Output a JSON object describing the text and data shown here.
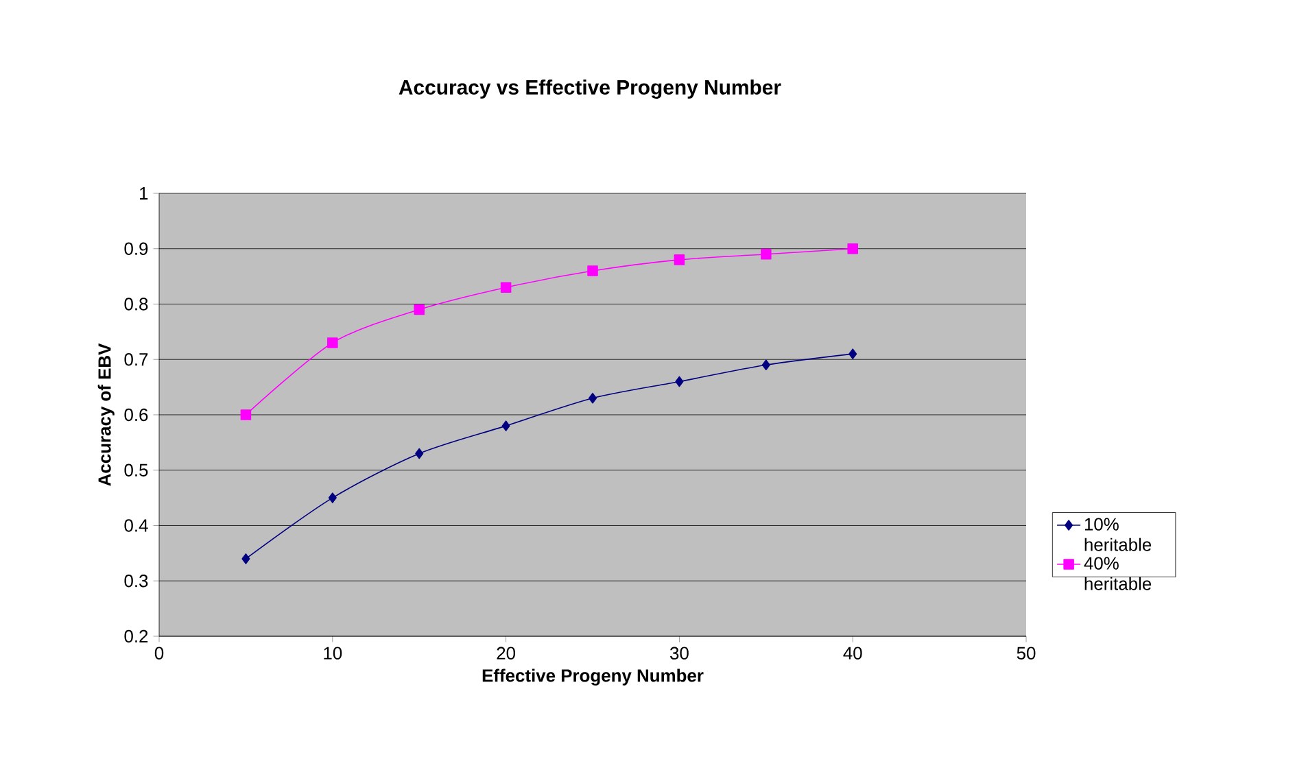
{
  "chart_data": {
    "type": "line",
    "title": "Accuracy vs Effective Progeny Number",
    "xlabel": "Effective Progeny Number",
    "ylabel": "Accuracy of EBV",
    "x": [
      5,
      10,
      15,
      20,
      25,
      30,
      35,
      40
    ],
    "series": [
      {
        "name": "10% heritable",
        "color": "#000080",
        "marker": "diamond",
        "values": [
          0.34,
          0.45,
          0.53,
          0.58,
          0.63,
          0.66,
          0.69,
          0.71
        ]
      },
      {
        "name": "40% heritable",
        "color": "#ff00ff",
        "marker": "square",
        "values": [
          0.6,
          0.73,
          0.79,
          0.83,
          0.86,
          0.88,
          0.89,
          0.9
        ]
      }
    ],
    "xlim": [
      0,
      50
    ],
    "xticks": [
      0,
      10,
      20,
      30,
      40,
      50
    ],
    "ylim": [
      0.2,
      1
    ],
    "yticks": [
      0.2,
      0.3,
      0.4,
      0.5,
      0.6,
      0.7,
      0.8,
      0.9,
      1
    ],
    "grid": "y",
    "legend": "right",
    "line_style": "solid"
  }
}
